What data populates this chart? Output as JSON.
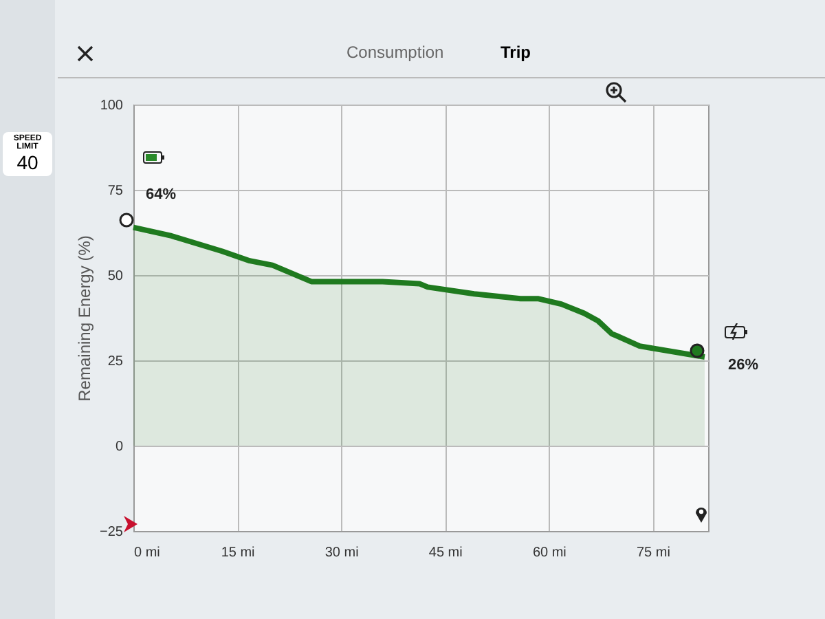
{
  "chart_data": {
    "type": "area",
    "ylabel": "Remaining Energy (%)",
    "x": [
      0,
      5.5,
      12.8,
      16.8,
      20.1,
      25.7,
      36,
      41.3,
      42.5,
      49.2,
      55.9,
      58.4,
      61.8,
      65.1,
      67.1,
      69.1,
      69.8,
      73.1,
      82.5
    ],
    "series": [
      {
        "color": "#1f7a1f",
        "values": [
          64,
          61.5,
          57,
          54.2,
          52.9,
          48.1,
          48.1,
          47.5,
          46.5,
          44.5,
          43.1,
          43.1,
          41.5,
          38.8,
          36.6,
          32.8,
          32.2,
          29.2,
          26
        ],
        "value_labels": [
          "64%",
          null,
          null,
          null,
          null,
          null,
          null,
          null,
          null,
          null,
          null,
          null,
          null,
          null,
          null,
          null,
          null,
          null,
          "26%"
        ]
      }
    ],
    "xlim": [
      0,
      83
    ],
    "ylim": [
      -25,
      100
    ],
    "xticks": [
      {
        "value": 0,
        "label": "0 mi"
      },
      {
        "value": 15,
        "label": "15 mi"
      },
      {
        "value": 30,
        "label": "30 mi"
      },
      {
        "value": 45,
        "label": "45 mi"
      },
      {
        "value": 60,
        "label": "60 mi"
      },
      {
        "value": 75,
        "label": "75 mi"
      }
    ],
    "yticks": [
      -25,
      0,
      25,
      50,
      75,
      100
    ],
    "grid": true,
    "legend": false,
    "marker": "none",
    "line_style": "solid",
    "annotations": [
      "Consumption",
      "Trip",
      "SPEED LIMIT",
      "40"
    ]
  }
}
